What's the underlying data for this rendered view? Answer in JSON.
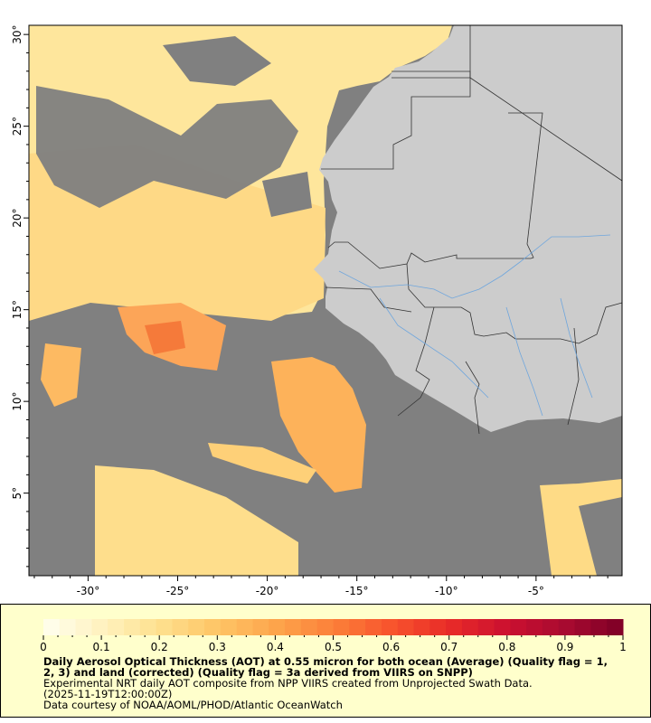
{
  "map": {
    "ocean_color": "#808080",
    "land_color": "#cccccc",
    "border_color": "#333333",
    "river_color": "#6fa6dd",
    "lat_ticks": [
      {
        "value": 30,
        "label": "30°"
      },
      {
        "value": 25,
        "label": "25°"
      },
      {
        "value": 20,
        "label": "20°"
      },
      {
        "value": 15,
        "label": "15°"
      },
      {
        "value": 10,
        "label": "10°"
      },
      {
        "value": 5,
        "label": "5°"
      }
    ],
    "lon_ticks": [
      {
        "value": -30,
        "label": "-30°"
      },
      {
        "value": -25,
        "label": "-25°"
      },
      {
        "value": -20,
        "label": "-20°"
      },
      {
        "value": -15,
        "label": "-15°"
      },
      {
        "value": -10,
        "label": "-10°"
      },
      {
        "value": -5,
        "label": "-5°"
      }
    ],
    "lon_range": [
      -33.3,
      -0.2
    ],
    "lat_range": [
      0.5,
      30.5
    ]
  },
  "colorbar": {
    "min": 0,
    "max": 1,
    "ticks": [
      "0",
      "0.1",
      "0.2",
      "0.3",
      "0.4",
      "0.5",
      "0.6",
      "0.7",
      "0.8",
      "0.9",
      "1"
    ],
    "stops": [
      "#fffff0",
      "#fff2c0",
      "#fee08e",
      "#fec566",
      "#fda54c",
      "#fc8039",
      "#f8542d",
      "#e82b28",
      "#cc1030",
      "#a80a30",
      "#7d0025"
    ]
  },
  "caption": {
    "title_line1": "Daily Aerosol Optical Thickness (AOT) at 0.55 micron for both ocean (Average) (Quality flag = 1,",
    "title_line2": "2, 3) and land (corrected) (Quality flag = 3a derived from VIIRS on SNPP)",
    "summary": "Experimental NRT daily AOT composite from NPP VIIRS created from Unprojected Swath Data.",
    "time": "(2025-11-19T12:00:00Z)",
    "credit": "Data courtesy of NOAA/AOML/PHOD/Atlantic OceanWatch"
  }
}
